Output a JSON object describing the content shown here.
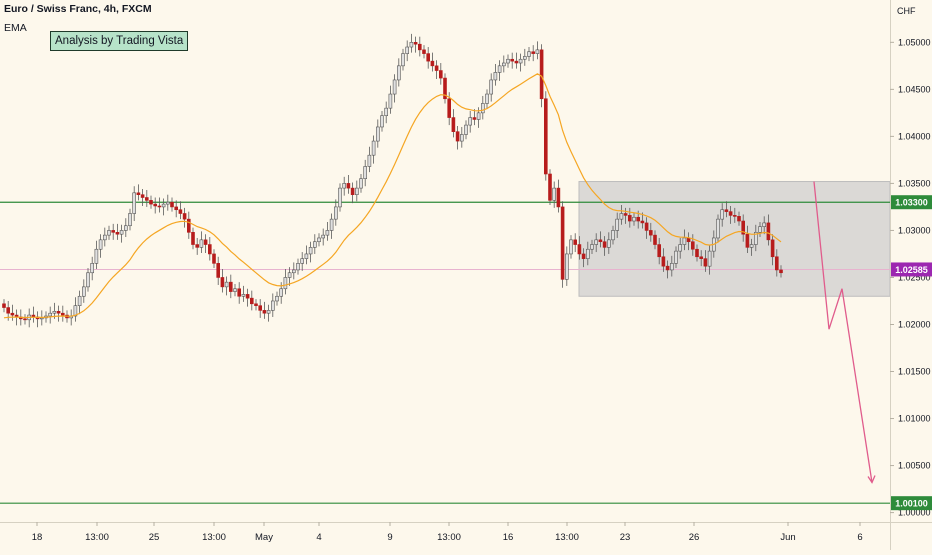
{
  "chart_data": {
    "type": "candlestick",
    "title": "Euro / Swiss Franc, 4h, FXCM",
    "indicator_label": "EMA",
    "annotation": "Analysis by Trading Vista",
    "currency_label": "CHF",
    "ylim": [
      0.999,
      1.0545
    ],
    "y_ticks": [
      "1.05000",
      "1.04500",
      "1.04000",
      "1.03500",
      "1.03000",
      "1.02500",
      "1.02000",
      "1.01500",
      "1.01000",
      "1.00500",
      "1.00000"
    ],
    "x_tick_labels": [
      "18",
      "13:00",
      "25",
      "13:00",
      "May",
      "4",
      "9",
      "13:00",
      "16",
      "13:00",
      "23",
      "26",
      "Jun",
      "6"
    ],
    "horizontal_levels": [
      {
        "value": 1.033,
        "label": "1.03300",
        "color": "#2e8b3a"
      },
      {
        "value": 1.001,
        "label": "1.00100",
        "color": "#2e8b3a"
      }
    ],
    "last_price": {
      "value": 1.02585,
      "label": "1.02585",
      "color": "#9c27b0"
    },
    "range_box": {
      "price_top": 1.0352,
      "price_bottom": 1.023
    },
    "projection": [
      1.0352,
      1.0195,
      1.0238,
      1.0032
    ],
    "colors": {
      "bull": "#e0e0e0",
      "bear": "#b71c1c",
      "ema": "#f5a623",
      "box": "#cfcfcf",
      "projection": "#e05c8c"
    },
    "closes": [
      1.0218,
      1.0212,
      1.021,
      1.0208,
      1.0206,
      1.0205,
      1.021,
      1.0208,
      1.0206,
      1.0207,
      1.0209,
      1.0212,
      1.0214,
      1.0212,
      1.021,
      1.0207,
      1.0209,
      1.022,
      1.023,
      1.024,
      1.0255,
      1.0265,
      1.028,
      1.029,
      1.0295,
      1.03,
      1.0298,
      1.0296,
      1.03,
      1.0305,
      1.0318,
      1.034,
      1.0338,
      1.0335,
      1.0332,
      1.0328,
      1.0326,
      1.0325,
      1.0328,
      1.033,
      1.0325,
      1.0322,
      1.0318,
      1.0312,
      1.0298,
      1.0285,
      1.0282,
      1.029,
      1.0285,
      1.0275,
      1.0265,
      1.025,
      1.024,
      1.0245,
      1.0235,
      1.0238,
      1.023,
      1.0232,
      1.0228,
      1.0222,
      1.022,
      1.0215,
      1.0212,
      1.0215,
      1.0225,
      1.023,
      1.0238,
      1.025,
      1.0255,
      1.0258,
      1.0265,
      1.027,
      1.0275,
      1.0282,
      1.0288,
      1.0292,
      1.0295,
      1.03,
      1.0312,
      1.0325,
      1.0345,
      1.035,
      1.0345,
      1.0338,
      1.0345,
      1.0355,
      1.0368,
      1.038,
      1.0395,
      1.041,
      1.0422,
      1.043,
      1.0445,
      1.046,
      1.0475,
      1.0488,
      1.0495,
      1.05,
      1.0498,
      1.0492,
      1.0488,
      1.048,
      1.0475,
      1.047,
      1.0462,
      1.044,
      1.042,
      1.0405,
      1.0395,
      1.0402,
      1.0412,
      1.042,
      1.0418,
      1.0425,
      1.0435,
      1.0445,
      1.046,
      1.0468,
      1.0475,
      1.0478,
      1.0482,
      1.048,
      1.0478,
      1.0482,
      1.0485,
      1.049,
      1.0488,
      1.0492,
      1.044,
      1.036,
      1.0332,
      1.0345,
      1.0325,
      1.0248,
      1.0275,
      1.029,
      1.0285,
      1.0275,
      1.027,
      1.028,
      1.0285,
      1.029,
      1.0288,
      1.0282,
      1.029,
      1.03,
      1.0312,
      1.0318,
      1.0316,
      1.031,
      1.0314,
      1.031,
      1.0308,
      1.03,
      1.0295,
      1.0285,
      1.0272,
      1.0262,
      1.0258,
      1.0265,
      1.0278,
      1.0285,
      1.0292,
      1.0288,
      1.028,
      1.0272,
      1.027,
      1.0262,
      1.0278,
      1.0292,
      1.0312,
      1.0322,
      1.032,
      1.0316,
      1.0315,
      1.031,
      1.0296,
      1.0282,
      1.0285,
      1.0298,
      1.0304,
      1.0308,
      1.029,
      1.0272,
      1.0258,
      1.0255
    ]
  }
}
